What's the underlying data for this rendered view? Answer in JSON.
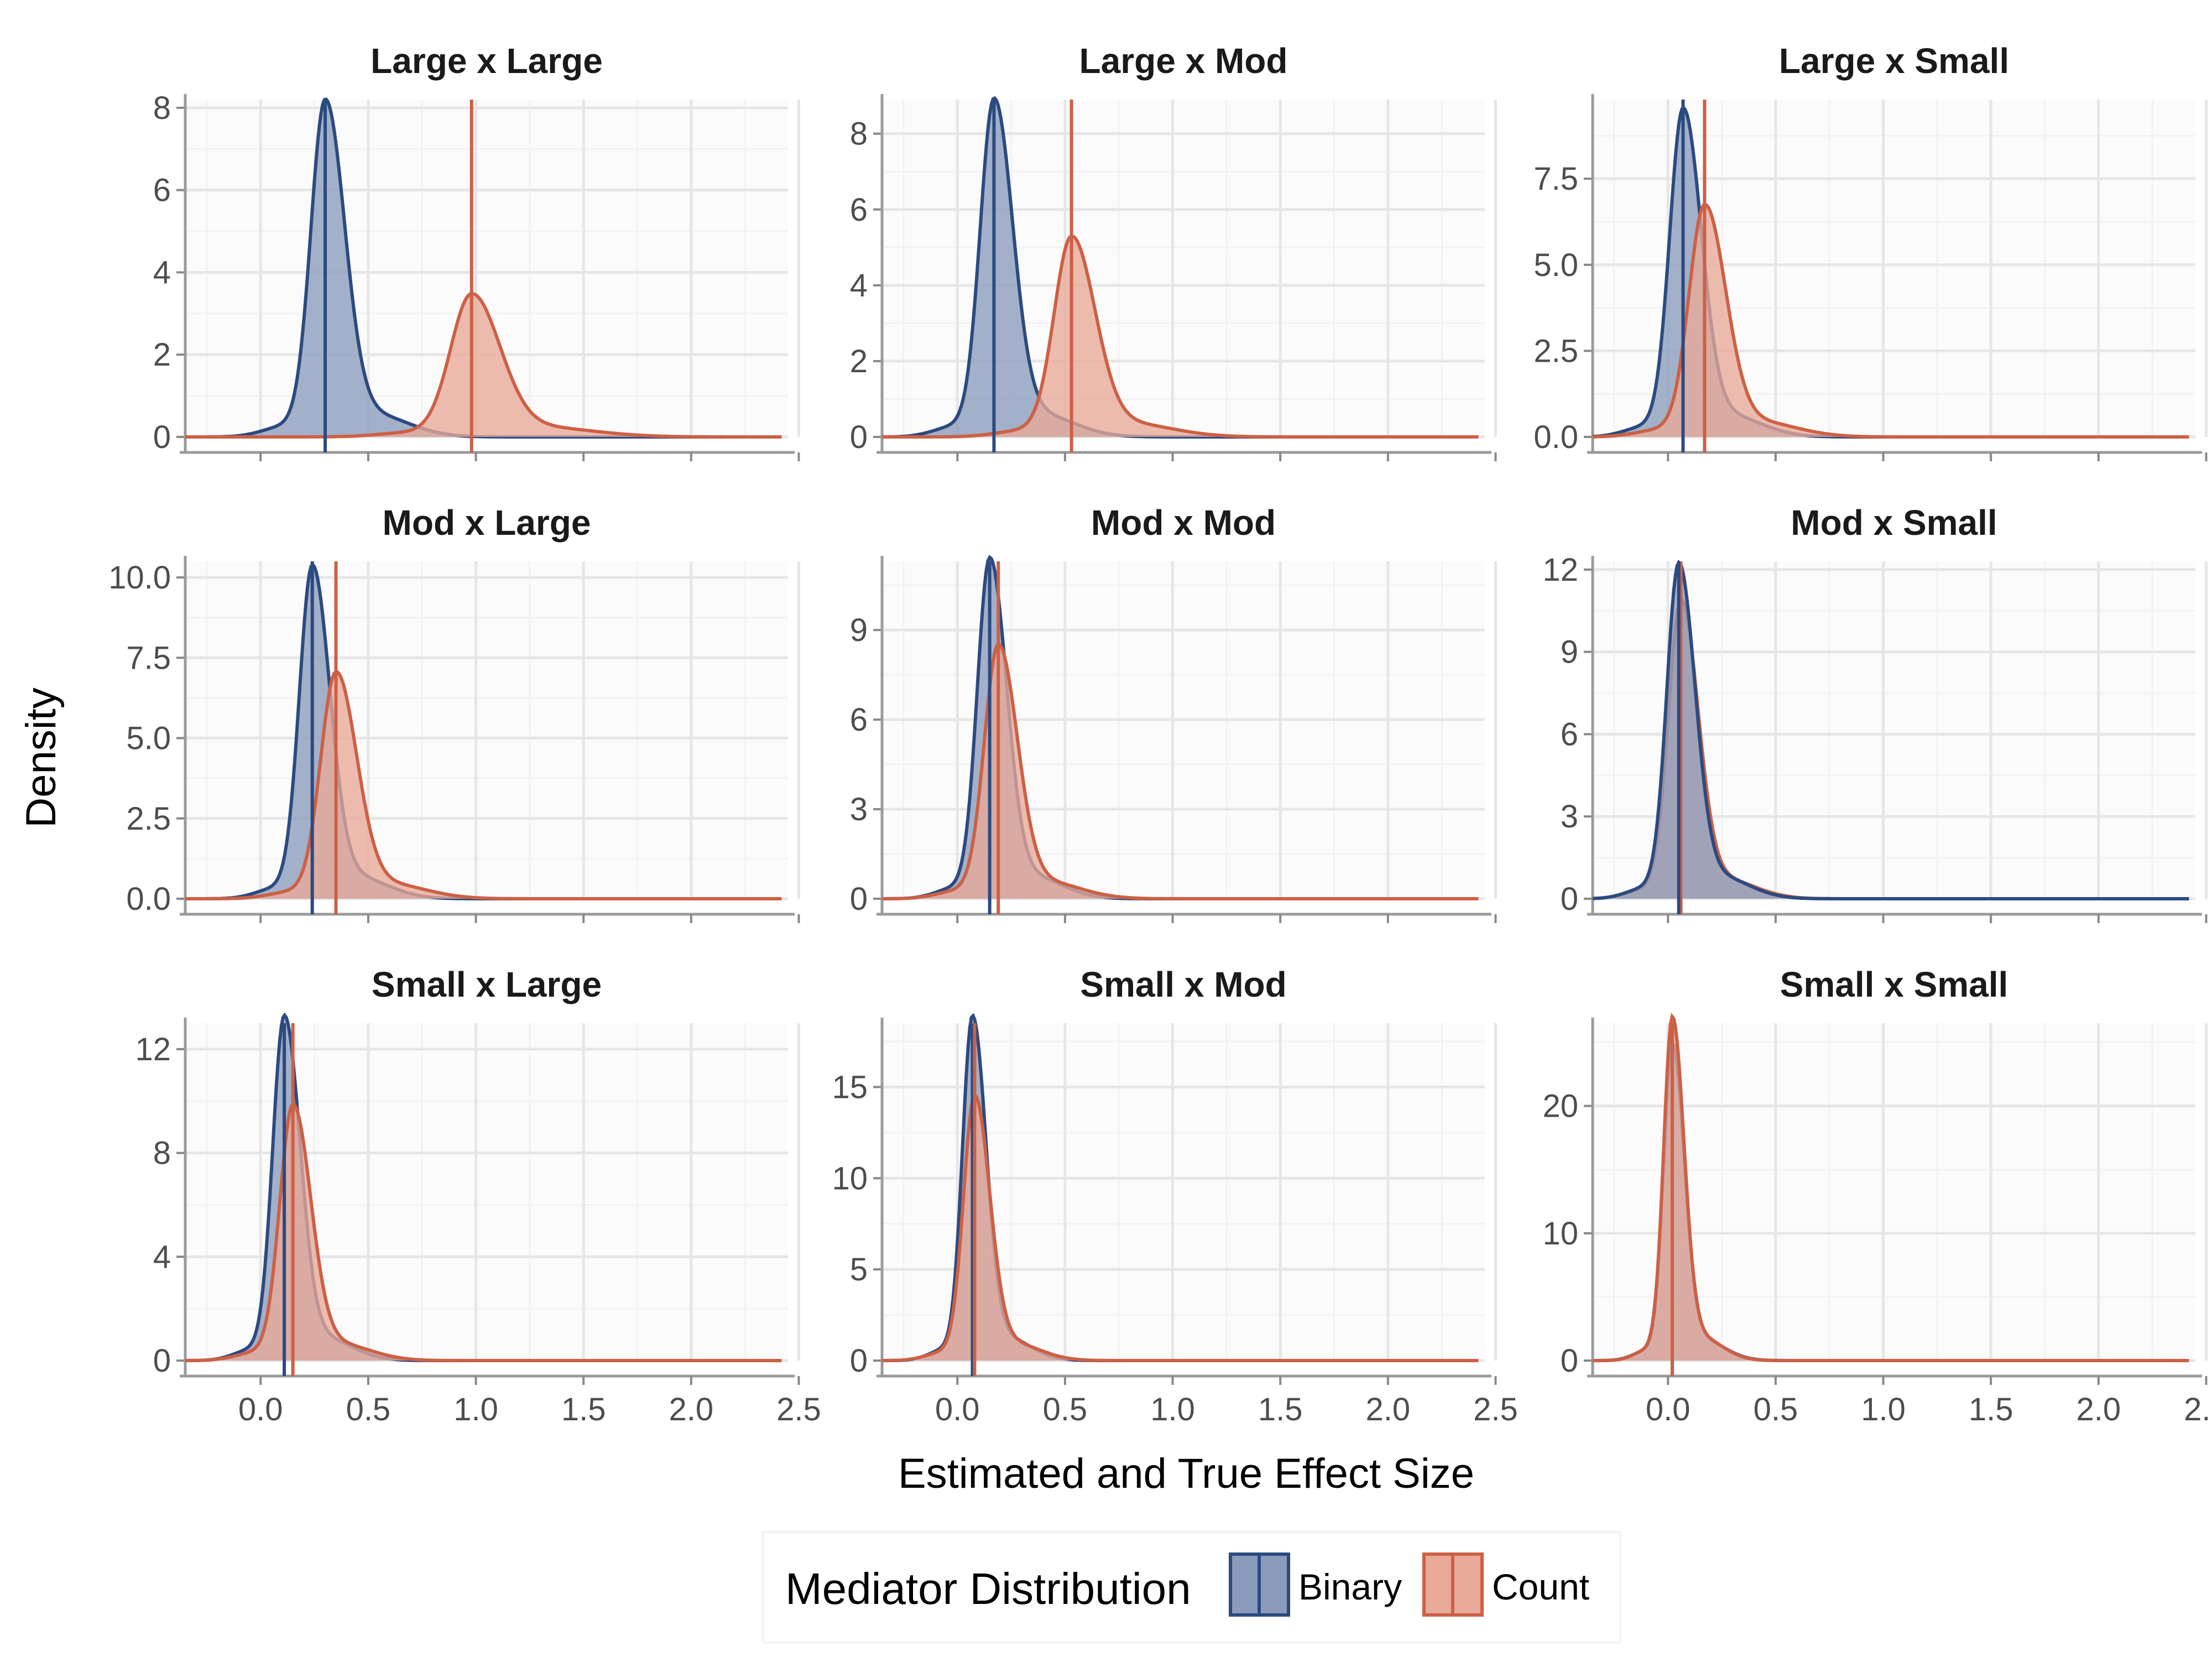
{
  "chart_data": {
    "type": "area",
    "title": "",
    "xlabel": "Estimated and True Effect Size",
    "ylabel": "Density",
    "xlim": [
      -0.35,
      2.45
    ],
    "x_ticks": [
      "0.0",
      "0.5",
      "1.0",
      "1.5",
      "2.0",
      "2.5"
    ],
    "x_tick_values": [
      0,
      0.5,
      1.0,
      1.5,
      2.0,
      2.5
    ],
    "grid": true,
    "legend": {
      "title": "Mediator Distribution",
      "placement": "bottom",
      "entries": [
        {
          "label": "Binary",
          "color": "#2b4a80",
          "fill": "#8a9bbb"
        },
        {
          "label": "Count",
          "color": "#cd6045",
          "fill": "#e8a998"
        }
      ]
    },
    "panels": [
      {
        "title": "Large x Large",
        "ylim": [
          0,
          8.2
        ],
        "y_ticks": [
          "0",
          "2",
          "4",
          "6",
          "8"
        ],
        "y_tick_values": [
          0,
          2,
          4,
          6,
          8
        ],
        "series": [
          {
            "name": "Binary",
            "peak_x": 0.3,
            "peak_y": 7.9,
            "true_value": 0.3
          },
          {
            "name": "Count",
            "peak_x": 0.98,
            "peak_y": 3.35,
            "true_value": 0.98
          }
        ]
      },
      {
        "title": "Large x Mod",
        "ylim": [
          0,
          8.9
        ],
        "y_ticks": [
          "0",
          "2",
          "4",
          "6",
          "8"
        ],
        "y_tick_values": [
          0,
          2,
          4,
          6,
          8
        ],
        "series": [
          {
            "name": "Binary",
            "peak_x": 0.17,
            "peak_y": 8.6,
            "true_value": 0.17
          },
          {
            "name": "Count",
            "peak_x": 0.53,
            "peak_y": 5.1,
            "true_value": 0.53
          }
        ]
      },
      {
        "title": "Large x Small",
        "ylim": [
          0,
          9.8
        ],
        "y_ticks": [
          "0.0",
          "2.5",
          "5.0",
          "7.5"
        ],
        "y_tick_values": [
          0,
          2.5,
          5.0,
          7.5
        ],
        "series": [
          {
            "name": "Binary",
            "peak_x": 0.07,
            "peak_y": 9.2,
            "true_value": 0.07
          },
          {
            "name": "Count",
            "peak_x": 0.17,
            "peak_y": 6.5,
            "true_value": 0.17
          }
        ]
      },
      {
        "title": "Mod x Large",
        "ylim": [
          0,
          10.5
        ],
        "y_ticks": [
          "0.0",
          "2.5",
          "5.0",
          "7.5",
          "10.0"
        ],
        "y_tick_values": [
          0,
          2.5,
          5.0,
          7.5,
          10.0
        ],
        "series": [
          {
            "name": "Binary",
            "peak_x": 0.24,
            "peak_y": 10.0,
            "true_value": 0.24
          },
          {
            "name": "Count",
            "peak_x": 0.35,
            "peak_y": 6.8,
            "true_value": 0.35
          }
        ]
      },
      {
        "title": "Mod x Mod",
        "ylim": [
          0,
          11.3
        ],
        "y_ticks": [
          "0",
          "3",
          "6",
          "9"
        ],
        "y_tick_values": [
          0,
          3,
          6,
          9
        ],
        "series": [
          {
            "name": "Binary",
            "peak_x": 0.15,
            "peak_y": 11.0,
            "true_value": 0.15
          },
          {
            "name": "Count",
            "peak_x": 0.19,
            "peak_y": 8.2,
            "true_value": 0.19
          }
        ]
      },
      {
        "title": "Mod x Small",
        "ylim": [
          0,
          12.3
        ],
        "y_ticks": [
          "0",
          "3",
          "6",
          "9",
          "12"
        ],
        "y_tick_values": [
          0,
          3,
          6,
          9,
          12
        ],
        "series": [
          {
            "name": "Count",
            "peak_x": 0.06,
            "peak_y": 10.5,
            "true_value": 0.06
          },
          {
            "name": "Binary",
            "peak_x": 0.05,
            "peak_y": 11.8,
            "true_value": 0.05
          }
        ]
      },
      {
        "title": "Small x Large",
        "ylim": [
          0,
          13.0
        ],
        "y_ticks": [
          "0",
          "4",
          "8",
          "12"
        ],
        "y_tick_values": [
          0,
          4,
          8,
          12
        ],
        "series": [
          {
            "name": "Binary",
            "peak_x": 0.11,
            "peak_y": 12.8,
            "true_value": 0.11
          },
          {
            "name": "Count",
            "peak_x": 0.15,
            "peak_y": 9.5,
            "true_value": 0.15
          }
        ]
      },
      {
        "title": "Small x Mod",
        "ylim": [
          0,
          18.5
        ],
        "y_ticks": [
          "0",
          "5",
          "10",
          "15"
        ],
        "y_tick_values": [
          0,
          5,
          10,
          15
        ],
        "series": [
          {
            "name": "Binary",
            "peak_x": 0.07,
            "peak_y": 18.2,
            "true_value": 0.07
          },
          {
            "name": "Count",
            "peak_x": 0.08,
            "peak_y": 14.0,
            "true_value": 0.08
          }
        ]
      },
      {
        "title": "Small x Small",
        "ylim": [
          0,
          26.5
        ],
        "y_ticks": [
          "0",
          "10",
          "20"
        ],
        "y_tick_values": [
          0,
          10,
          20
        ],
        "series": [
          {
            "name": "Binary",
            "peak_x": 0.02,
            "peak_y": 24.0,
            "true_value": 0.02
          },
          {
            "name": "Count",
            "peak_x": 0.02,
            "peak_y": 26.0,
            "true_value": 0.02
          }
        ]
      }
    ]
  }
}
